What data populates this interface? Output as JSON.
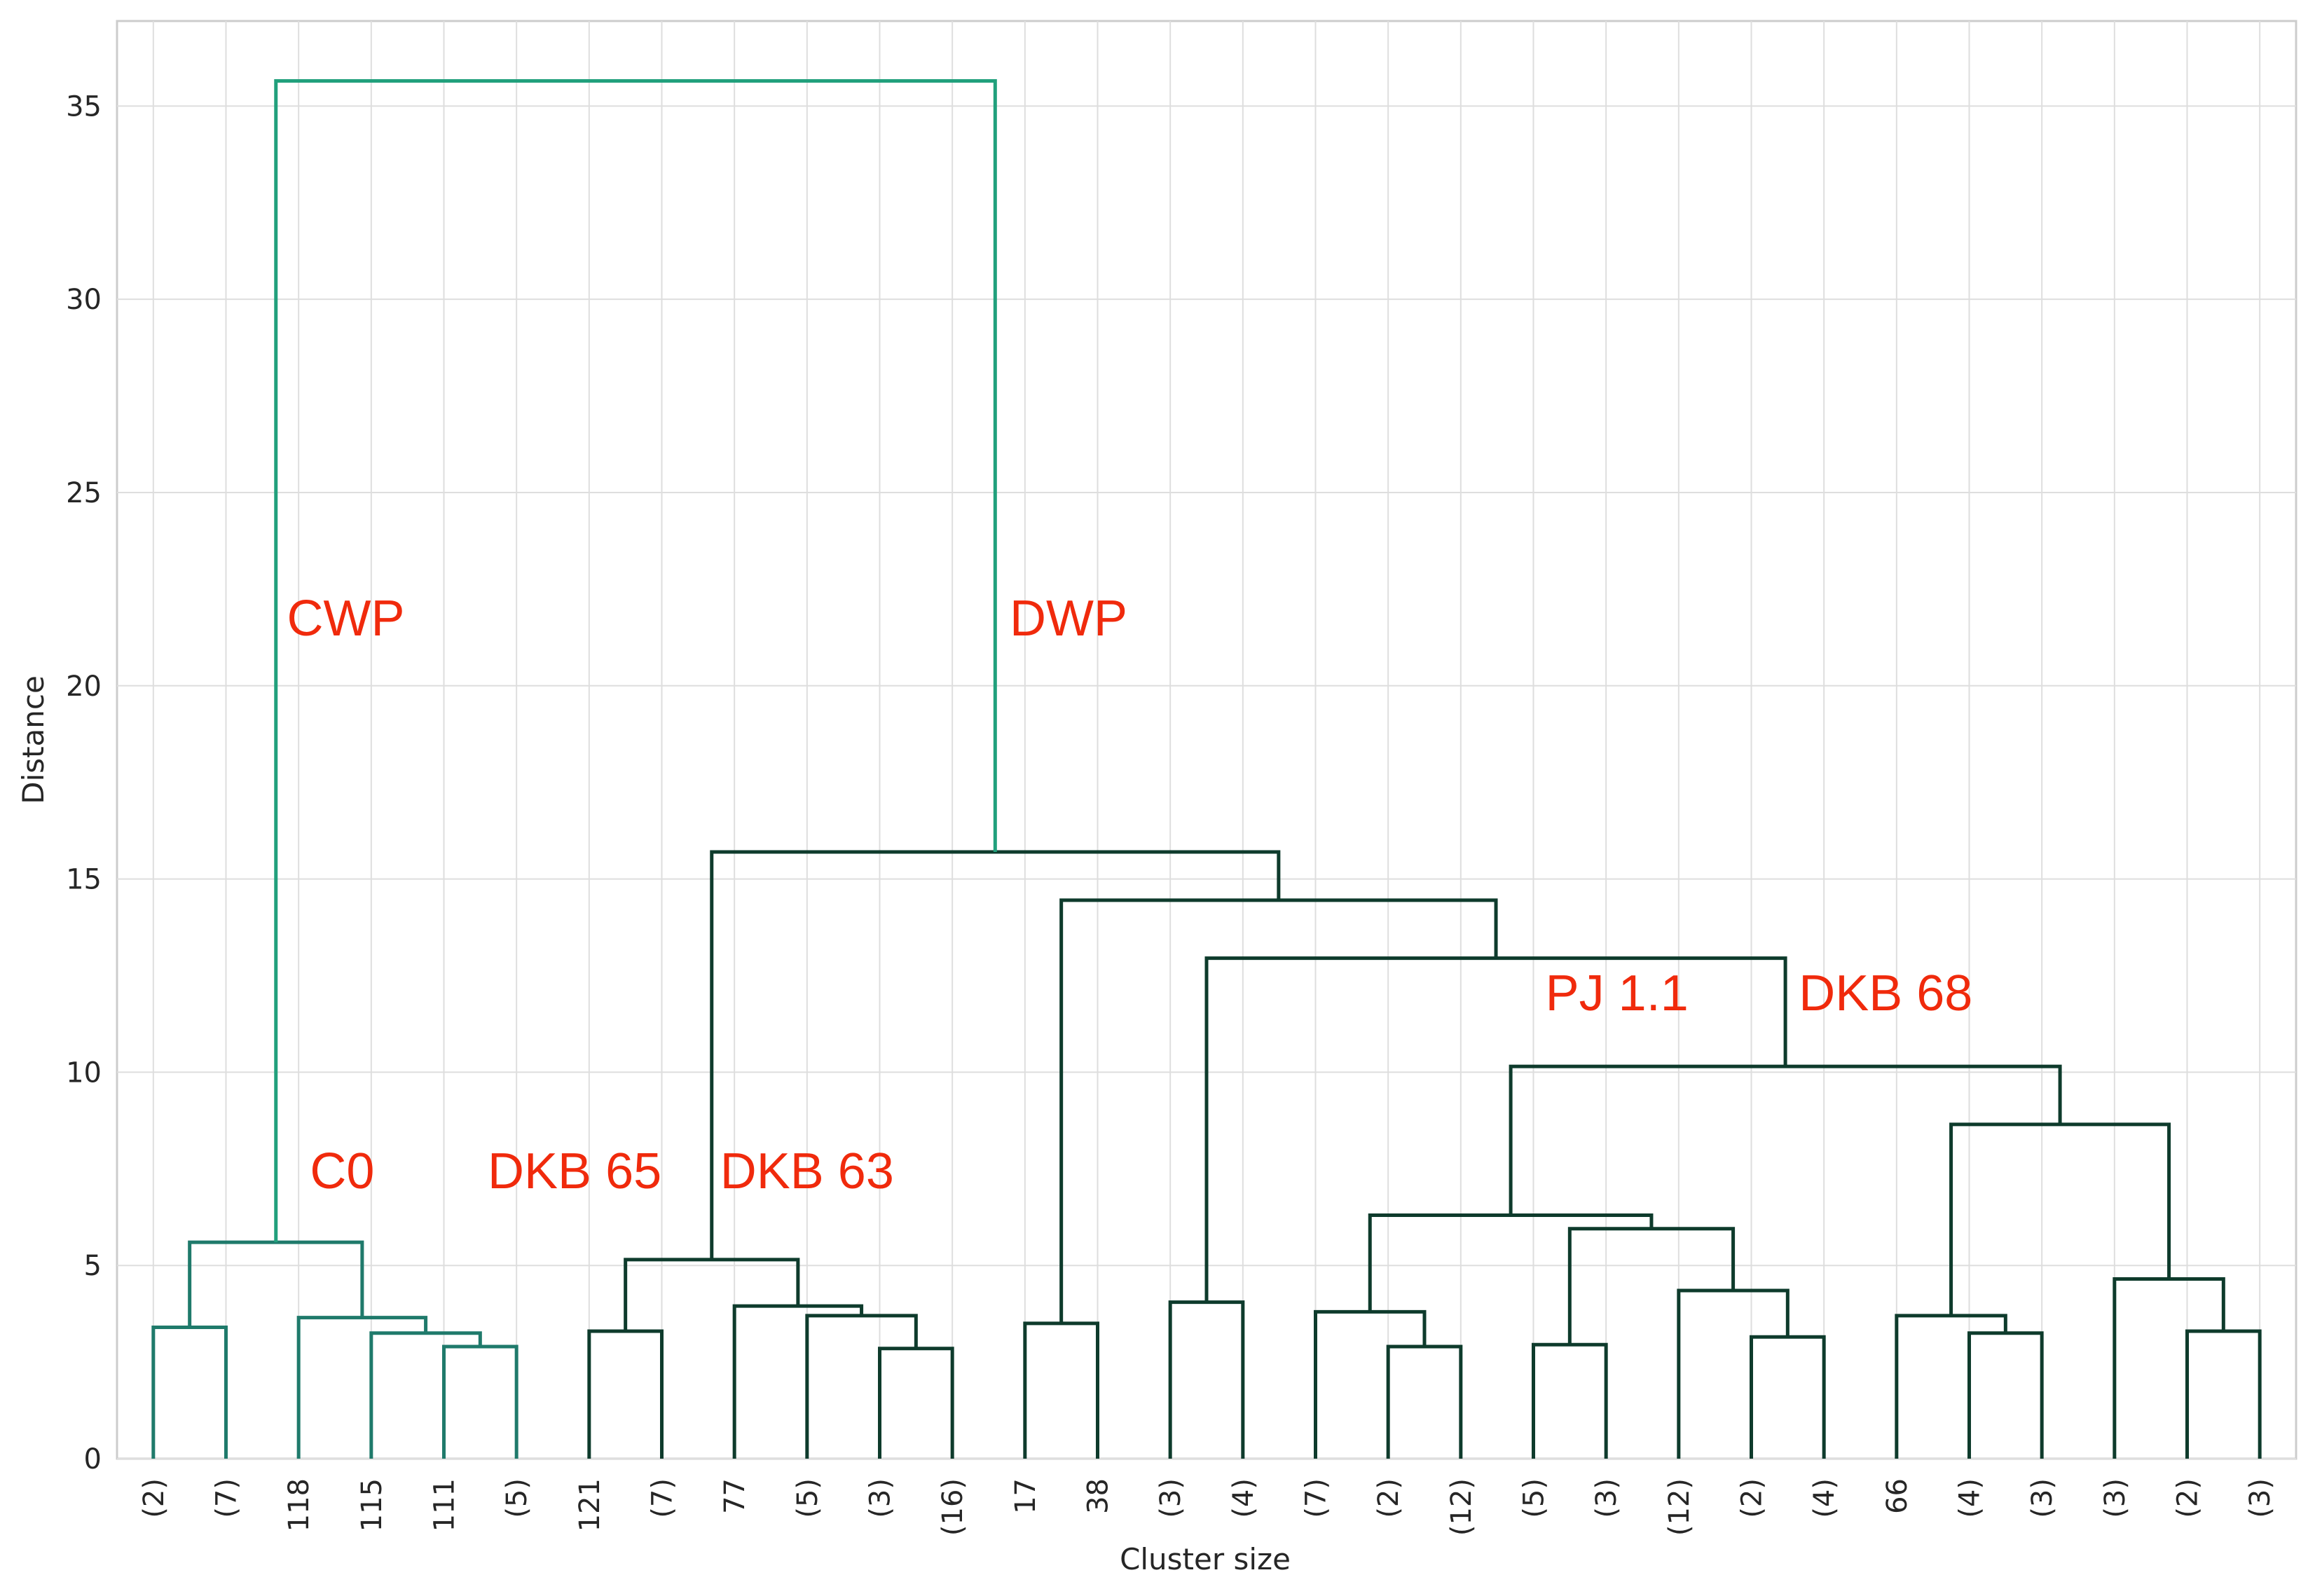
{
  "chart_data": {
    "type": "dendrogram",
    "xlabel": "Cluster size",
    "ylabel": "Distance",
    "ylim": [
      0,
      37.2
    ],
    "yticks": [
      0,
      5,
      10,
      15,
      20,
      25,
      30,
      35
    ],
    "grid": true,
    "leaves": [
      "(2)",
      "(7)",
      "118",
      "115",
      "111",
      "(5)",
      "121",
      "(7)",
      "77",
      "(5)",
      "(3)",
      "(16)",
      "17",
      "38",
      "(3)",
      "(4)",
      "(7)",
      "(2)",
      "(12)",
      "(5)",
      "(3)",
      "(12)",
      "(2)",
      "(4)",
      "66",
      "(4)",
      "(3)",
      "(3)",
      "(2)",
      "(3)"
    ],
    "merges": [
      {
        "a": "L0",
        "b": "L1",
        "h": 3.4,
        "id": "n1",
        "color": "#1f7a6b"
      },
      {
        "a": "L4",
        "b": "L5",
        "h": 2.9,
        "id": "n2",
        "color": "#1f7a6b"
      },
      {
        "a": "L3",
        "b": "n2",
        "h": 3.25,
        "id": "n3",
        "color": "#1f7a6b"
      },
      {
        "a": "L2",
        "b": "n3",
        "h": 3.65,
        "id": "n4",
        "color": "#1f7a6b"
      },
      {
        "a": "n1",
        "b": "n4",
        "h": 5.6,
        "id": "n5",
        "color": "#1f7a6b"
      },
      {
        "a": "L6",
        "b": "L7",
        "h": 3.3,
        "id": "n6",
        "color": "#0e3b2c"
      },
      {
        "a": "L10",
        "b": "L11",
        "h": 2.85,
        "id": "n7",
        "color": "#0e3b2c"
      },
      {
        "a": "L9",
        "b": "n7",
        "h": 3.7,
        "id": "n8",
        "color": "#0e3b2c"
      },
      {
        "a": "L8",
        "b": "n8",
        "h": 3.95,
        "id": "n9",
        "color": "#0e3b2c"
      },
      {
        "a": "n6",
        "b": "n9",
        "h": 5.15,
        "id": "n10",
        "color": "#0e3b2c"
      },
      {
        "a": "L12",
        "b": "L13",
        "h": 3.5,
        "id": "n11",
        "color": "#0e3b2c"
      },
      {
        "a": "L14",
        "b": "L15",
        "h": 4.05,
        "id": "n12",
        "color": "#0e3b2c"
      },
      {
        "a": "L17",
        "b": "L18",
        "h": 2.9,
        "id": "n13",
        "color": "#0e3b2c"
      },
      {
        "a": "L16",
        "b": "n13",
        "h": 3.8,
        "id": "n14",
        "color": "#0e3b2c"
      },
      {
        "a": "L19",
        "b": "L20",
        "h": 2.95,
        "id": "n15",
        "color": "#0e3b2c"
      },
      {
        "a": "L22",
        "b": "L23",
        "h": 3.15,
        "id": "n16",
        "color": "#0e3b2c"
      },
      {
        "a": "L21",
        "b": "n16",
        "h": 4.35,
        "id": "n17",
        "color": "#0e3b2c"
      },
      {
        "a": "n15",
        "b": "n17",
        "h": 5.95,
        "id": "n18",
        "color": "#0e3b2c"
      },
      {
        "a": "n14",
        "b": "n18",
        "h": 6.3,
        "id": "n19",
        "color": "#0e3b2c"
      },
      {
        "a": "L25",
        "b": "L26",
        "h": 3.25,
        "id": "n20",
        "color": "#0e3b2c"
      },
      {
        "a": "L24",
        "b": "n20",
        "h": 3.7,
        "id": "n21",
        "color": "#0e3b2c"
      },
      {
        "a": "L28",
        "b": "L29",
        "h": 3.3,
        "id": "n22",
        "color": "#0e3b2c"
      },
      {
        "a": "L27",
        "b": "n22",
        "h": 4.65,
        "id": "n23",
        "color": "#0e3b2c"
      },
      {
        "a": "n21",
        "b": "n23",
        "h": 8.65,
        "id": "n24",
        "color": "#0e3b2c"
      },
      {
        "a": "n19",
        "b": "n24",
        "h": 10.15,
        "id": "n25",
        "color": "#0e3b2c"
      },
      {
        "a": "n12",
        "b": "n25",
        "h": 12.95,
        "id": "n26",
        "color": "#0e3b2c"
      },
      {
        "a": "n11",
        "b": "n26",
        "h": 14.45,
        "id": "n27",
        "color": "#0e3b2c"
      },
      {
        "a": "n10",
        "b": "n27",
        "h": 15.7,
        "id": "n28",
        "color": "#0e3b2c"
      },
      {
        "a": "n5",
        "b": "n28",
        "h": 35.65,
        "id": "n29",
        "color": "#21a07c"
      }
    ],
    "annotations": [
      {
        "text": "CWP",
        "x": 3.15,
        "y": 21.3
      },
      {
        "text": "DWP",
        "x": 13.1,
        "y": 21.3
      },
      {
        "text": "C0",
        "x": 3.1,
        "y": 7.0
      },
      {
        "text": "DKB 65",
        "x": 6.3,
        "y": 7.0
      },
      {
        "text": "DKB 63",
        "x": 9.5,
        "y": 7.0
      },
      {
        "text": "PJ 1.1",
        "x": 20.65,
        "y": 11.6
      },
      {
        "text": "DKB 68",
        "x": 24.35,
        "y": 11.6
      }
    ]
  }
}
